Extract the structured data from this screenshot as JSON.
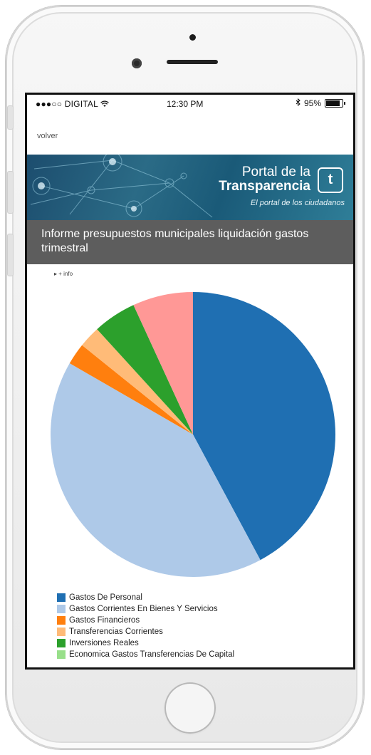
{
  "status_bar": {
    "carrier": "●●●○○ DIGITAL",
    "time": "12:30 PM",
    "battery": "95%",
    "battery_level": 0.95
  },
  "nav": {
    "back_label": "volver"
  },
  "banner": {
    "line1": "Portal de la",
    "line2": "Transparencia",
    "tagline": "El portal de los ciudadanos",
    "logo": "t"
  },
  "report": {
    "title": "Informe presupuestos municipales liquidación gastos trimestral",
    "info_link": "▸ + info"
  },
  "chart_data": {
    "type": "pie",
    "slices": [
      {
        "label": "Gastos De Personal",
        "value": 43,
        "color": "#1f6fb2"
      },
      {
        "label": "Gastos Corrientes En Bienes Y Servicios",
        "value": 42,
        "color": "#aec9e8"
      },
      {
        "label": "Gastos Financieros",
        "value": 2.5,
        "color": "#ff7f0e"
      },
      {
        "label": "Transferencias Corrientes",
        "value": 2.5,
        "color": "#ffbb78"
      },
      {
        "label": "Inversiones Reales",
        "value": 5,
        "color": "#2ca02c"
      },
      {
        "label": "Economica Gastos Transferencias De Capital",
        "value": 0,
        "color": "#98df8a"
      },
      {
        "label": "",
        "value": 7,
        "color": "#ff9896"
      }
    ],
    "legend_position": "bottom"
  }
}
